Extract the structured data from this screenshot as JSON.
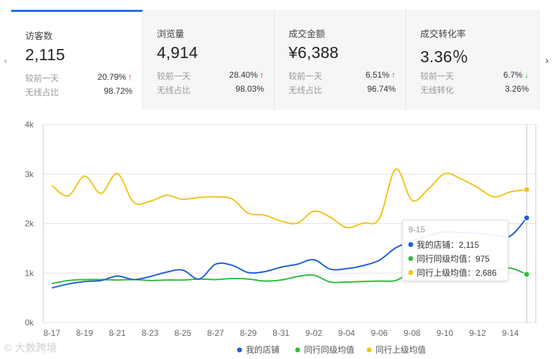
{
  "kpis": [
    {
      "label": "访客数",
      "value": "2,115",
      "row1_label": "较前一天",
      "row1_value": "20.79%",
      "row1_arrow": "↑",
      "row2_label": "无线占比",
      "row2_value": "98.72%"
    },
    {
      "label": "浏览量",
      "value": "4,914",
      "row1_label": "较前一天",
      "row1_value": "28.40%",
      "row1_arrow": "↑",
      "row2_label": "无线占比",
      "row2_value": "98.03%"
    },
    {
      "label": "成交金额",
      "value": "¥6,388",
      "row1_label": "较前一天",
      "row1_value": "6.51%",
      "row1_arrow": "↑",
      "row2_label": "无线占比",
      "row2_value": "96.74%"
    },
    {
      "label": "成交转化率",
      "value": "3.36％",
      "row1_label": "较前一天",
      "row1_value": "6.7%",
      "row1_arrow": "↓",
      "row2_label": "无线转化",
      "row2_value": "3.26%"
    }
  ],
  "nav": {
    "prev": "‹",
    "next": "›"
  },
  "colors": {
    "accent": "#1e6ee6",
    "series": [
      "#1f5fd8",
      "#2ebd3b",
      "#f0c419"
    ]
  },
  "tooltip": {
    "title": "9-15",
    "lines": [
      "我的店铺：2,115",
      "同行同级均值：975",
      "同行上级均值：2,686"
    ]
  },
  "watermark": "© 大数跨境",
  "chart_data": {
    "type": "line",
    "x": [
      "8-17",
      "8-18",
      "8-19",
      "8-20",
      "8-21",
      "8-22",
      "8-23",
      "8-24",
      "8-25",
      "8-26",
      "8-27",
      "8-28",
      "8-29",
      "8-30",
      "8-31",
      "9-01",
      "9-02",
      "9-03",
      "9-04",
      "9-05",
      "9-06",
      "9-07",
      "9-08",
      "9-09",
      "9-10",
      "9-11",
      "9-12",
      "9-13",
      "9-14",
      "9-15"
    ],
    "x_tick_labels": [
      "8-17",
      "8-19",
      "8-21",
      "8-23",
      "8-25",
      "8-27",
      "8-29",
      "8-31",
      "9-02",
      "9-04",
      "9-06",
      "9-08",
      "9-10",
      "9-12",
      "9-14"
    ],
    "y_tick_labels": [
      "0k",
      "1k",
      "2k",
      "3k",
      "4k"
    ],
    "ylim": [
      0,
      4000
    ],
    "grid": true,
    "legend_position": "bottom",
    "series": [
      {
        "name": "我的店铺",
        "values": [
          700,
          780,
          830,
          850,
          940,
          870,
          930,
          1020,
          1060,
          880,
          1180,
          1160,
          1010,
          1030,
          1120,
          1180,
          1270,
          1080,
          1090,
          1150,
          1260,
          1510,
          1650,
          1760,
          1830,
          1820,
          1800,
          1770,
          1750,
          2115
        ]
      },
      {
        "name": "同行同级均值",
        "values": [
          790,
          850,
          870,
          870,
          860,
          870,
          850,
          860,
          860,
          880,
          870,
          890,
          880,
          840,
          860,
          930,
          960,
          820,
          820,
          830,
          840,
          850,
          1020,
          1050,
          1000,
          1020,
          1040,
          1060,
          1100,
          975
        ]
      },
      {
        "name": "同行上级均值",
        "values": [
          2770,
          2560,
          2960,
          2610,
          3010,
          2430,
          2450,
          2570,
          2490,
          2530,
          2540,
          2500,
          2210,
          2170,
          2050,
          2010,
          2250,
          2130,
          1920,
          2010,
          2100,
          3100,
          2470,
          2700,
          3010,
          2900,
          2730,
          2540,
          2640,
          2686
        ]
      }
    ]
  }
}
